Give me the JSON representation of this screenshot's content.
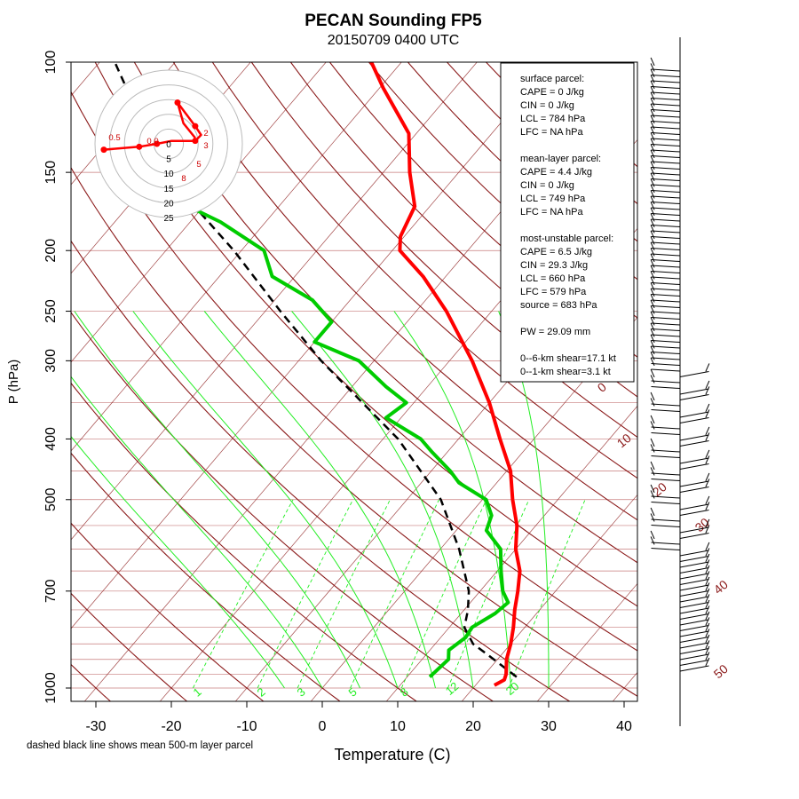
{
  "chart_data": {
    "type": "skew-t",
    "title": "PECAN Sounding FP5",
    "subtitle": "20150709 0400 UTC",
    "xlabel": "Temperature (C)",
    "ylabel": "P (hPa)",
    "footnote": "dashed black line shows mean 500-m layer parcel",
    "xlim": [
      -35,
      45
    ],
    "ylim_pressure": [
      1050,
      100
    ],
    "log_pressure_axis": true,
    "grid": true,
    "colors": {
      "temperature": "#ff0000",
      "dewpoint": "#00cc00",
      "parcel": "#000000",
      "dry_adiabat": "#8b1a1a",
      "isotherm": "#8b1a1a",
      "moist_adiabat": "#22ee22",
      "mixing_ratio": "#22ee22",
      "isobar": "#c77b7b"
    },
    "pressure_ticks": [
      "100",
      "150",
      "200",
      "250",
      "300",
      "400",
      "500",
      "700",
      "1000"
    ],
    "temperature_ticks": [
      "-30",
      "-20",
      "-10",
      "0",
      "10",
      "20",
      "30",
      "40"
    ],
    "mixing_ratio_labels": [
      "1",
      "2",
      "3",
      "5",
      "8",
      "12",
      "20"
    ],
    "dry_adiabat_labels": [
      "0",
      "10",
      "20",
      "30",
      "40",
      "50"
    ],
    "temperature_profile": [
      {
        "p": 990,
        "t": 22.5
      },
      {
        "p": 970,
        "t": 23.2
      },
      {
        "p": 950,
        "t": 22.8
      },
      {
        "p": 900,
        "t": 21.2
      },
      {
        "p": 850,
        "t": 20.0
      },
      {
        "p": 800,
        "t": 18.5
      },
      {
        "p": 750,
        "t": 16.7
      },
      {
        "p": 700,
        "t": 15.0
      },
      {
        "p": 650,
        "t": 13.0
      },
      {
        "p": 600,
        "t": 10.0
      },
      {
        "p": 550,
        "t": 7.5
      },
      {
        "p": 500,
        "t": 4.0
      },
      {
        "p": 450,
        "t": 0.5
      },
      {
        "p": 400,
        "t": -4.5
      },
      {
        "p": 350,
        "t": -10.0
      },
      {
        "p": 300,
        "t": -17.0
      },
      {
        "p": 250,
        "t": -26.0
      },
      {
        "p": 220,
        "t": -33.0
      },
      {
        "p": 200,
        "t": -39.0
      },
      {
        "p": 190,
        "t": -40.5
      },
      {
        "p": 170,
        "t": -42.0
      },
      {
        "p": 150,
        "t": -46.5
      },
      {
        "p": 130,
        "t": -51.0
      },
      {
        "p": 110,
        "t": -59.5
      },
      {
        "p": 100,
        "t": -64.0
      }
    ],
    "dewpoint_profile": [
      {
        "p": 960,
        "t": 13.0
      },
      {
        "p": 900,
        "t": 13.5
      },
      {
        "p": 870,
        "t": 12.5
      },
      {
        "p": 830,
        "t": 13.3
      },
      {
        "p": 800,
        "t": 13.0
      },
      {
        "p": 760,
        "t": 14.5
      },
      {
        "p": 730,
        "t": 15.0
      },
      {
        "p": 700,
        "t": 13.0
      },
      {
        "p": 650,
        "t": 10.5
      },
      {
        "p": 600,
        "t": 8.0
      },
      {
        "p": 560,
        "t": 4.0
      },
      {
        "p": 530,
        "t": 3.0
      },
      {
        "p": 500,
        "t": 0.5
      },
      {
        "p": 470,
        "t": -5.0
      },
      {
        "p": 450,
        "t": -7.5
      },
      {
        "p": 420,
        "t": -12.0
      },
      {
        "p": 400,
        "t": -15.0
      },
      {
        "p": 370,
        "t": -22.0
      },
      {
        "p": 350,
        "t": -21.0
      },
      {
        "p": 330,
        "t": -25.5
      },
      {
        "p": 300,
        "t": -32.0
      },
      {
        "p": 280,
        "t": -40.0
      },
      {
        "p": 260,
        "t": -40.0
      },
      {
        "p": 240,
        "t": -45.0
      },
      {
        "p": 220,
        "t": -53.0
      },
      {
        "p": 200,
        "t": -57.0
      },
      {
        "p": 180,
        "t": -66.0
      },
      {
        "p": 170,
        "t": -72.0
      }
    ],
    "parcel_profile": [
      {
        "p": 960,
        "t": 24.5
      },
      {
        "p": 900,
        "t": 19.5
      },
      {
        "p": 850,
        "t": 15.0
      },
      {
        "p": 800,
        "t": 12.0
      },
      {
        "p": 750,
        "t": 10.5
      },
      {
        "p": 700,
        "t": 8.5
      },
      {
        "p": 600,
        "t": 2.5
      },
      {
        "p": 500,
        "t": -5.5
      },
      {
        "p": 400,
        "t": -18.0
      },
      {
        "p": 300,
        "t": -37.0
      },
      {
        "p": 250,
        "t": -48.0
      },
      {
        "p": 200,
        "t": -61.0
      },
      {
        "p": 150,
        "t": -79.0
      },
      {
        "p": 100,
        "t": -98.0
      }
    ],
    "stats_box": {
      "lines": [
        "surface parcel:",
        "CAPE = 0 J/kg",
        "CIN = 0 J/kg",
        "LCL = 784 hPa",
        "LFC = NA hPa",
        "",
        "mean-layer parcel:",
        "CAPE = 4.4 J/kg",
        "CIN = 0 J/kg",
        "LCL = 749 hPa",
        "LFC = NA hPa",
        "",
        "most-unstable parcel:",
        "CAPE = 6.5 J/kg",
        "CIN = 29.3 J/kg",
        "LCL = 660 hPa",
        "LFC = 579 hPa",
        "source = 683 hPa",
        "",
        "PW =  29.09 mm",
        "",
        "0--6-km shear=17.1 kt",
        "0--1-km shear=3.1 kt"
      ]
    },
    "hodograph": {
      "ring_labels": [
        "0",
        "5",
        "10",
        "15",
        "20",
        "25"
      ],
      "height_labels": [
        "0.5",
        "0.0",
        "2",
        "3",
        "5",
        "8"
      ],
      "points": [
        [
          -22,
          2
        ],
        [
          -10,
          1
        ],
        [
          -4,
          0
        ],
        [
          1,
          -1
        ],
        [
          9,
          -1
        ],
        [
          11,
          -3
        ],
        [
          9,
          -6
        ],
        [
          6,
          -10
        ],
        [
          3,
          -14
        ],
        [
          5,
          -7
        ],
        [
          9,
          -2
        ]
      ]
    }
  }
}
